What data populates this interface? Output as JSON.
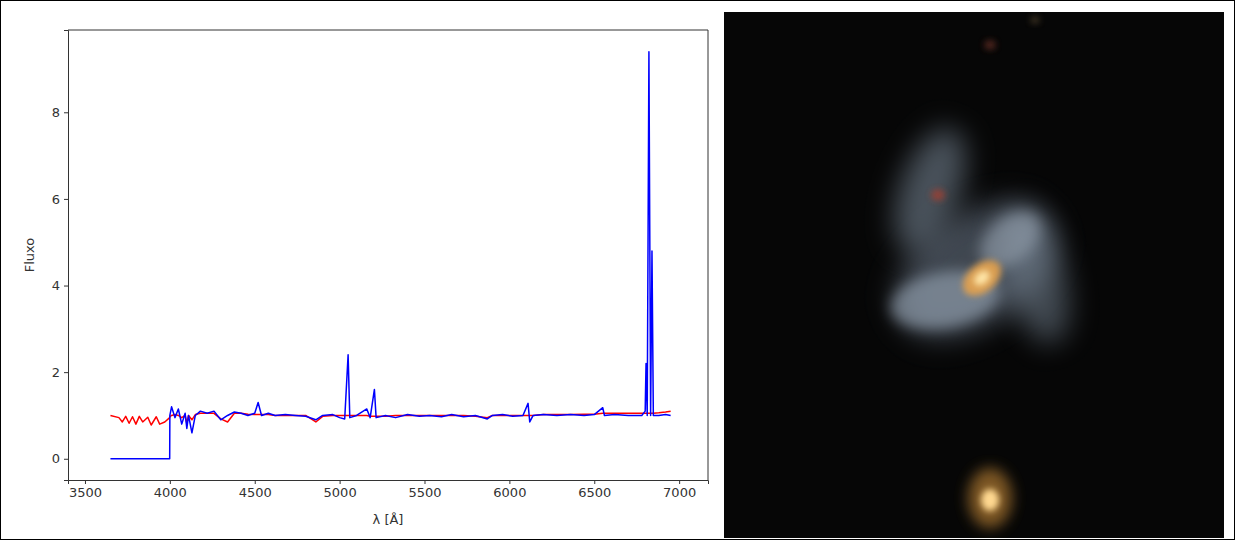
{
  "chart_data": {
    "type": "line",
    "xlabel": "λ [Å]",
    "ylabel": "Fluxo",
    "x": [
      3650,
      3700,
      3720,
      3740,
      3760,
      3780,
      3800,
      3820,
      3840,
      3870,
      3890,
      3920,
      3940,
      3970,
      3999,
      4000,
      4010,
      4030,
      4050,
      4070,
      4090,
      4100,
      4110,
      4130,
      4150,
      4180,
      4220,
      4260,
      4300,
      4340,
      4380,
      4420,
      4460,
      4500,
      4520,
      4540,
      4580,
      4620,
      4680,
      4740,
      4800,
      4860,
      4900,
      4960,
      5000,
      5030,
      5050,
      5060,
      5100,
      5160,
      5180,
      5205,
      5215,
      5270,
      5330,
      5400,
      5470,
      5530,
      5600,
      5660,
      5730,
      5800,
      5870,
      5900,
      5960,
      6020,
      6080,
      6110,
      6120,
      6140,
      6200,
      6280,
      6360,
      6440,
      6500,
      6550,
      6560,
      6620,
      6700,
      6780,
      6800,
      6805,
      6812,
      6822,
      6832,
      6840,
      6848,
      6880,
      6920,
      6950
    ],
    "series": [
      {
        "color": "#ff0000",
        "values": [
          1.0,
          0.95,
          0.85,
          0.98,
          0.82,
          0.97,
          0.8,
          0.98,
          0.85,
          0.96,
          0.78,
          0.97,
          0.8,
          0.85,
          0.95,
          0.97,
          1.0,
          1.02,
          1.0,
          0.95,
          1.0,
          0.82,
          1.0,
          0.9,
          1.02,
          1.05,
          1.05,
          1.05,
          0.92,
          0.85,
          1.05,
          1.05,
          1.03,
          1.02,
          1.02,
          1.02,
          1.02,
          1.0,
          1.0,
          1.0,
          1.0,
          0.85,
          0.98,
          1.0,
          1.0,
          1.0,
          1.0,
          1.0,
          1.0,
          1.0,
          0.98,
          0.98,
          0.98,
          0.98,
          1.0,
          1.0,
          1.0,
          1.0,
          1.0,
          1.0,
          1.0,
          0.98,
          0.95,
          1.0,
          1.0,
          1.0,
          1.0,
          1.0,
          1.0,
          1.0,
          1.02,
          1.02,
          1.02,
          1.03,
          1.03,
          1.05,
          1.05,
          1.05,
          1.05,
          1.05,
          1.05,
          1.05,
          1.05,
          1.05,
          1.05,
          1.05,
          1.05,
          1.06,
          1.08,
          1.1
        ]
      },
      {
        "color": "#0000ff",
        "values": [
          0,
          0,
          0,
          0,
          0,
          0,
          0,
          0,
          0,
          0,
          0,
          0,
          0,
          0,
          0,
          1.0,
          1.2,
          0.95,
          1.15,
          0.8,
          1.05,
          0.7,
          1.0,
          0.6,
          1.0,
          1.1,
          1.05,
          1.1,
          0.9,
          1.0,
          1.08,
          1.05,
          1.0,
          1.05,
          1.3,
          1.0,
          1.05,
          1.0,
          1.02,
          1.0,
          0.98,
          0.9,
          1.0,
          1.02,
          0.95,
          0.92,
          2.4,
          0.95,
          1.0,
          1.15,
          0.95,
          1.6,
          0.95,
          1.0,
          0.95,
          1.02,
          0.98,
          1.0,
          0.97,
          1.02,
          0.97,
          1.0,
          0.92,
          1.0,
          1.02,
          0.98,
          1.0,
          1.28,
          0.85,
          1.0,
          1.02,
          1.0,
          1.02,
          1.0,
          1.02,
          1.18,
          1.0,
          1.02,
          1.0,
          1.0,
          1.1,
          2.2,
          1.0,
          9.4,
          1.0,
          4.8,
          1.0,
          1.0,
          1.02,
          1.0
        ]
      }
    ],
    "xlim": [
      3400,
      7170
    ],
    "ylim": [
      -0.49,
      9.9
    ],
    "xticks": [
      3500,
      4000,
      4500,
      5000,
      5500,
      6000,
      6500,
      7000
    ],
    "yticks": [
      0,
      2,
      4,
      6,
      8
    ],
    "grid": false
  }
}
